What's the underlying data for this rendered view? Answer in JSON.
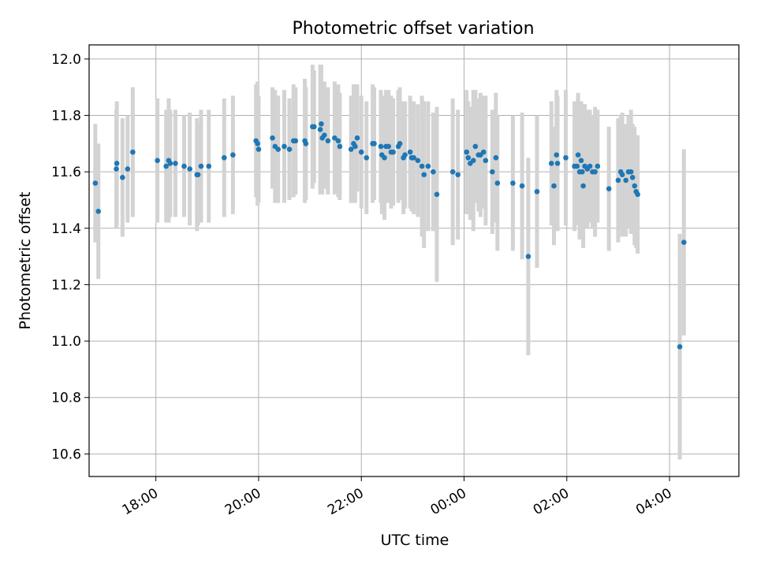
{
  "chart_data": {
    "type": "scatter",
    "title": "Photometric offset variation",
    "xlabel": "UTC time",
    "ylabel": "Photometric offset",
    "x_ticks": [
      "18:00",
      "20:00",
      "22:00",
      "00:00",
      "02:00",
      "04:00"
    ],
    "y_ticks": [
      "10.6",
      "10.8",
      "11.0",
      "11.2",
      "11.4",
      "11.6",
      "11.8",
      "12.0"
    ],
    "xlim": [
      16.7,
      29.35
    ],
    "ylim": [
      10.52,
      12.05
    ],
    "grid": true,
    "colors": {
      "point": "#1f77b4",
      "errorbar": "#d3d3d3",
      "grid": "#b0b0b0"
    },
    "points": [
      [
        16.82,
        11.56,
        0.21
      ],
      [
        16.88,
        11.46,
        0.24
      ],
      [
        17.23,
        11.61,
        0.21
      ],
      [
        17.24,
        11.63,
        0.22
      ],
      [
        17.35,
        11.58,
        0.21
      ],
      [
        17.45,
        11.61,
        0.19
      ],
      [
        17.55,
        11.67,
        0.23
      ],
      [
        18.03,
        11.64,
        0.22
      ],
      [
        18.2,
        11.62,
        0.2
      ],
      [
        18.25,
        11.64,
        0.22
      ],
      [
        18.28,
        11.63,
        0.19
      ],
      [
        18.38,
        11.63,
        0.19
      ],
      [
        18.55,
        11.62,
        0.18
      ],
      [
        18.66,
        11.61,
        0.2
      ],
      [
        18.8,
        11.59,
        0.2
      ],
      [
        18.82,
        11.59,
        0.18
      ],
      [
        18.88,
        11.62,
        0.2
      ],
      [
        19.03,
        11.62,
        0.2
      ],
      [
        19.33,
        11.65,
        0.21
      ],
      [
        19.5,
        11.66,
        0.21
      ],
      [
        19.95,
        11.71,
        0.2
      ],
      [
        19.98,
        11.7,
        0.22
      ],
      [
        20.0,
        11.68,
        0.19
      ],
      [
        20.27,
        11.72,
        0.18
      ],
      [
        20.32,
        11.69,
        0.2
      ],
      [
        20.38,
        11.68,
        0.19
      ],
      [
        20.5,
        11.69,
        0.2
      ],
      [
        20.6,
        11.68,
        0.18
      ],
      [
        20.68,
        11.71,
        0.2
      ],
      [
        20.72,
        11.71,
        0.19
      ],
      [
        20.9,
        11.71,
        0.22
      ],
      [
        20.92,
        11.7,
        0.2
      ],
      [
        21.05,
        11.76,
        0.22
      ],
      [
        21.08,
        11.76,
        0.2
      ],
      [
        21.2,
        11.75,
        0.23
      ],
      [
        21.22,
        11.77,
        0.21
      ],
      [
        21.24,
        11.72,
        0.2
      ],
      [
        21.28,
        11.73,
        0.19
      ],
      [
        21.35,
        11.71,
        0.19
      ],
      [
        21.48,
        11.72,
        0.2
      ],
      [
        21.55,
        11.71,
        0.2
      ],
      [
        21.58,
        11.69,
        0.19
      ],
      [
        21.8,
        11.68,
        0.19
      ],
      [
        21.85,
        11.7,
        0.21
      ],
      [
        21.88,
        11.69,
        0.2
      ],
      [
        21.92,
        11.72,
        0.19
      ],
      [
        22.0,
        11.67,
        0.2
      ],
      [
        22.1,
        11.65,
        0.2
      ],
      [
        22.22,
        11.7,
        0.21
      ],
      [
        22.25,
        11.7,
        0.2
      ],
      [
        22.38,
        11.69,
        0.2
      ],
      [
        22.4,
        11.66,
        0.21
      ],
      [
        22.45,
        11.65,
        0.22
      ],
      [
        22.48,
        11.69,
        0.2
      ],
      [
        22.53,
        11.69,
        0.2
      ],
      [
        22.58,
        11.67,
        0.2
      ],
      [
        22.62,
        11.67,
        0.19
      ],
      [
        22.72,
        11.69,
        0.2
      ],
      [
        22.75,
        11.7,
        0.2
      ],
      [
        22.82,
        11.65,
        0.2
      ],
      [
        22.85,
        11.66,
        0.19
      ],
      [
        22.95,
        11.67,
        0.2
      ],
      [
        22.98,
        11.65,
        0.19
      ],
      [
        23.02,
        11.65,
        0.2
      ],
      [
        23.1,
        11.64,
        0.2
      ],
      [
        23.18,
        11.62,
        0.25
      ],
      [
        23.22,
        11.59,
        0.26
      ],
      [
        23.3,
        11.62,
        0.23
      ],
      [
        23.4,
        11.6,
        0.21
      ],
      [
        23.47,
        11.52,
        0.31
      ],
      [
        23.78,
        11.6,
        0.26
      ],
      [
        23.88,
        11.59,
        0.23
      ],
      [
        24.05,
        11.67,
        0.22
      ],
      [
        24.08,
        11.65,
        0.2
      ],
      [
        24.12,
        11.63,
        0.2
      ],
      [
        24.18,
        11.64,
        0.25
      ],
      [
        24.22,
        11.69,
        0.2
      ],
      [
        24.28,
        11.66,
        0.2
      ],
      [
        24.32,
        11.66,
        0.22
      ],
      [
        24.38,
        11.67,
        0.2
      ],
      [
        24.42,
        11.64,
        0.23
      ],
      [
        24.55,
        11.6,
        0.22
      ],
      [
        24.62,
        11.65,
        0.23
      ],
      [
        24.65,
        11.56,
        0.24
      ],
      [
        24.95,
        11.56,
        0.24
      ],
      [
        25.13,
        11.55,
        0.26
      ],
      [
        25.25,
        11.3,
        0.35
      ],
      [
        25.42,
        11.53,
        0.27
      ],
      [
        25.7,
        11.63,
        0.22
      ],
      [
        25.75,
        11.55,
        0.21
      ],
      [
        25.8,
        11.66,
        0.23
      ],
      [
        25.82,
        11.63,
        0.24
      ],
      [
        25.98,
        11.65,
        0.24
      ],
      [
        26.15,
        11.62,
        0.23
      ],
      [
        26.2,
        11.62,
        0.21
      ],
      [
        26.22,
        11.66,
        0.22
      ],
      [
        26.25,
        11.6,
        0.24
      ],
      [
        26.28,
        11.64,
        0.21
      ],
      [
        26.3,
        11.6,
        0.24
      ],
      [
        26.32,
        11.55,
        0.22
      ],
      [
        26.35,
        11.62,
        0.22
      ],
      [
        26.4,
        11.61,
        0.21
      ],
      [
        26.45,
        11.62,
        0.2
      ],
      [
        26.5,
        11.6,
        0.2
      ],
      [
        26.55,
        11.6,
        0.23
      ],
      [
        26.6,
        11.62,
        0.2
      ],
      [
        26.82,
        11.54,
        0.22
      ],
      [
        27.0,
        11.57,
        0.22
      ],
      [
        27.05,
        11.6,
        0.2
      ],
      [
        27.08,
        11.59,
        0.22
      ],
      [
        27.15,
        11.57,
        0.2
      ],
      [
        27.2,
        11.6,
        0.2
      ],
      [
        27.25,
        11.6,
        0.22
      ],
      [
        27.28,
        11.58,
        0.19
      ],
      [
        27.32,
        11.55,
        0.21
      ],
      [
        27.35,
        11.53,
        0.2
      ],
      [
        27.38,
        11.52,
        0.21
      ],
      [
        28.2,
        10.98,
        0.4
      ],
      [
        28.28,
        11.35,
        0.33
      ]
    ]
  }
}
